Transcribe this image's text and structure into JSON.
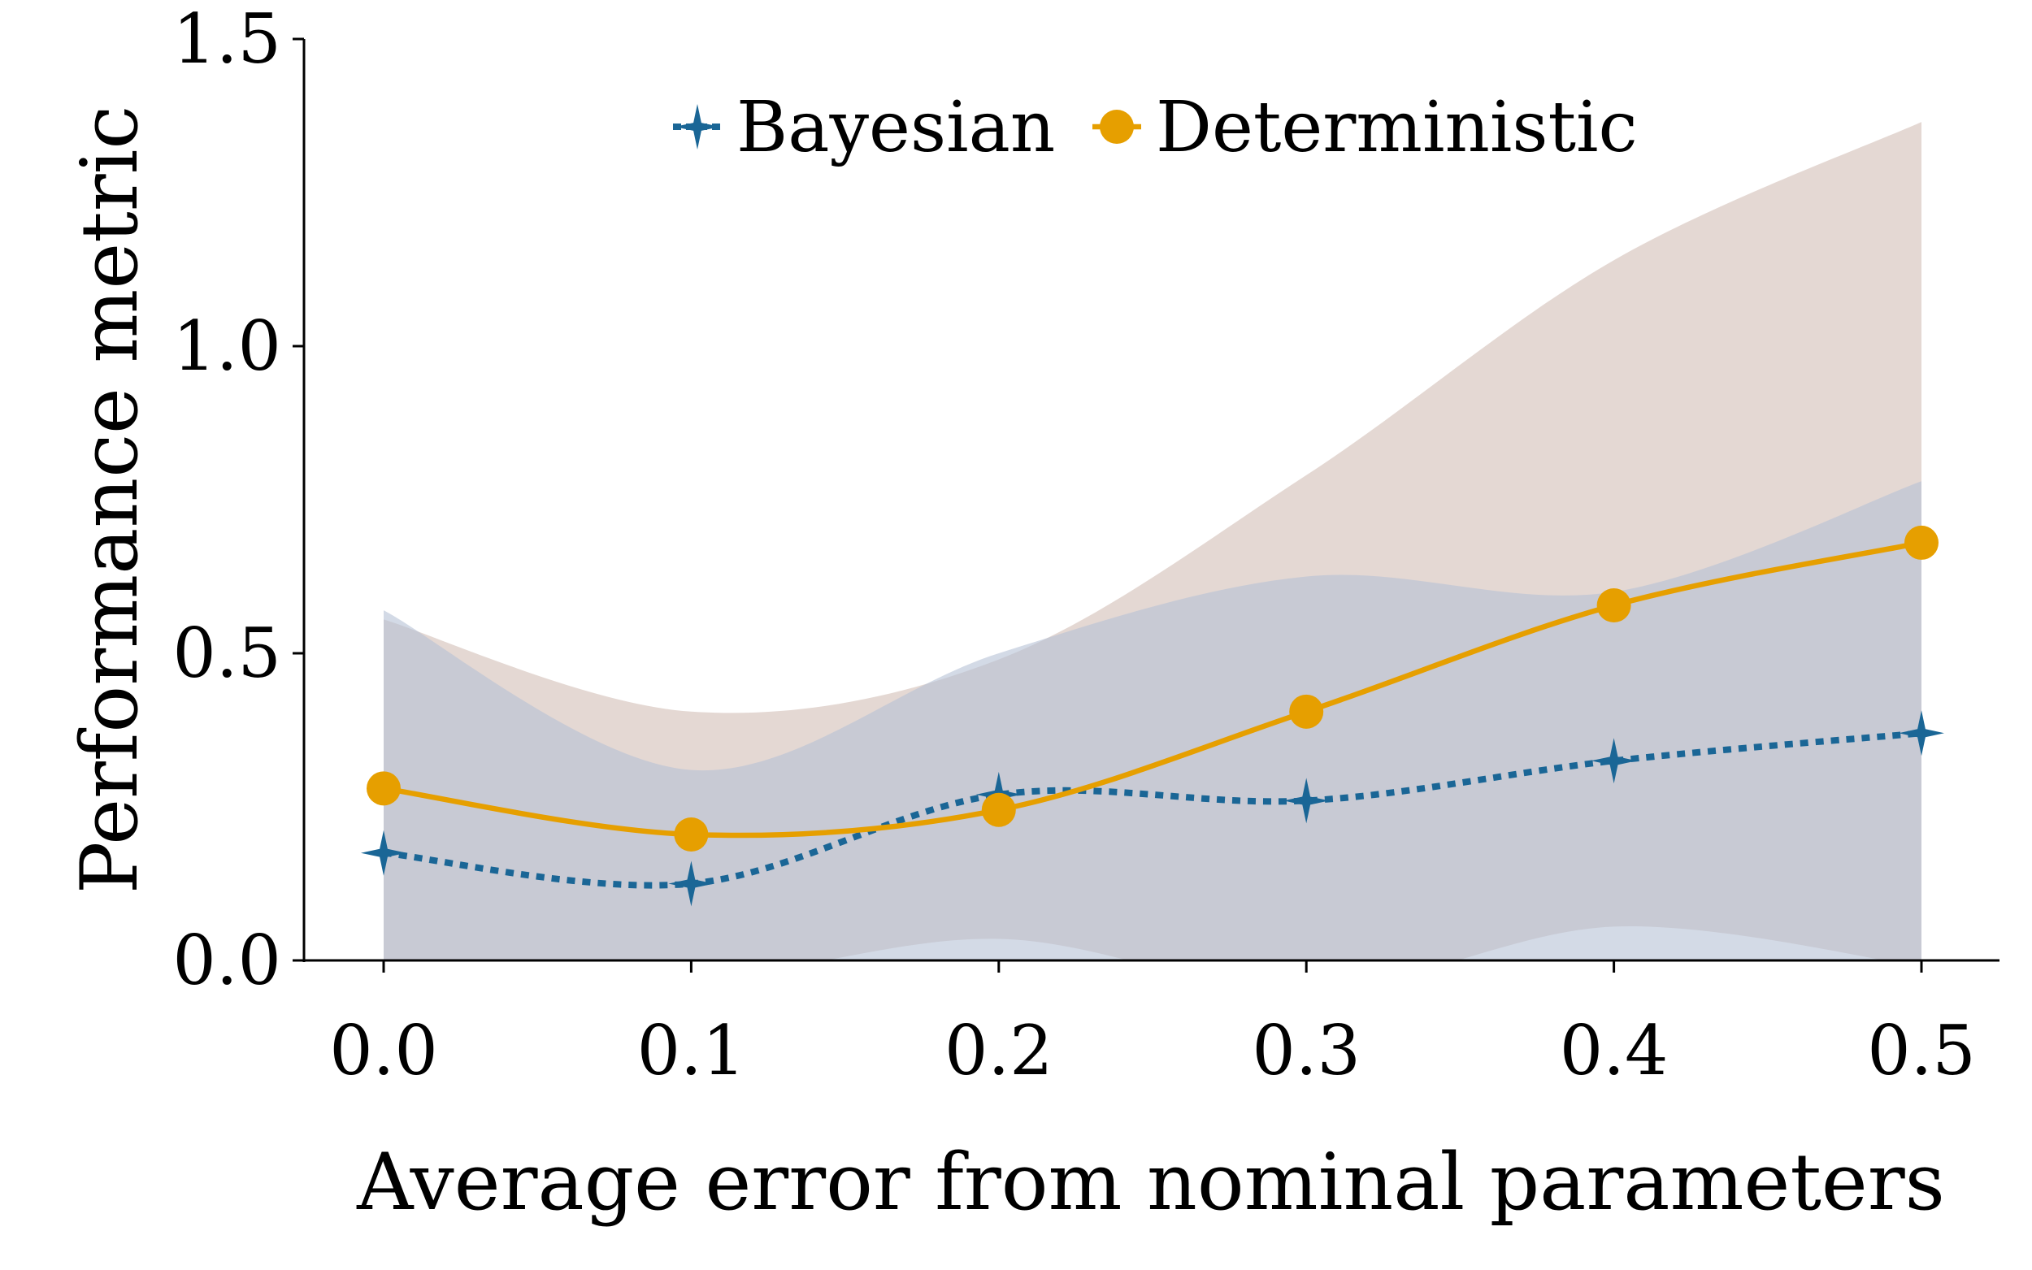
{
  "chart_data": {
    "type": "line",
    "xlabel": "Average error from nominal parameters",
    "ylabel": "Performance metric",
    "xlim": [
      -0.05,
      0.525
    ],
    "ylim": [
      0,
      1.5
    ],
    "x": [
      0.0,
      0.1,
      0.2,
      0.3,
      0.4,
      0.5
    ],
    "x_ticks": [
      "0.0",
      "0.1",
      "0.2",
      "0.3",
      "0.4",
      "0.5"
    ],
    "y_ticks": [
      "0.0",
      "0.5",
      "1.0",
      "1.5"
    ],
    "grid": false,
    "legend_position": "top-center",
    "series": [
      {
        "name": "Bayesian",
        "values": [
          0.175,
          0.125,
          0.27,
          0.26,
          0.325,
          0.37
        ],
        "band_upper": [
          0.57,
          0.31,
          0.5,
          0.625,
          0.6,
          0.78
        ],
        "band_lower": [
          0.0,
          0.0,
          0.0,
          0.0,
          0.0,
          0.0
        ],
        "color": "#1a6696",
        "band_color": "#b6c2d6",
        "line_style": "dotted",
        "marker": "star"
      },
      {
        "name": "Deterministic",
        "values": [
          0.28,
          0.205,
          0.245,
          0.405,
          0.578,
          0.68
        ],
        "band_upper": [
          0.555,
          0.405,
          0.49,
          0.79,
          1.14,
          1.365
        ],
        "band_lower": [
          0.0,
          -0.03,
          0.035,
          -0.05,
          0.055,
          -0.01
        ],
        "color": "#e69f00",
        "band_color": "#dccdc6",
        "line_style": "solid",
        "marker": "circle"
      }
    ]
  }
}
